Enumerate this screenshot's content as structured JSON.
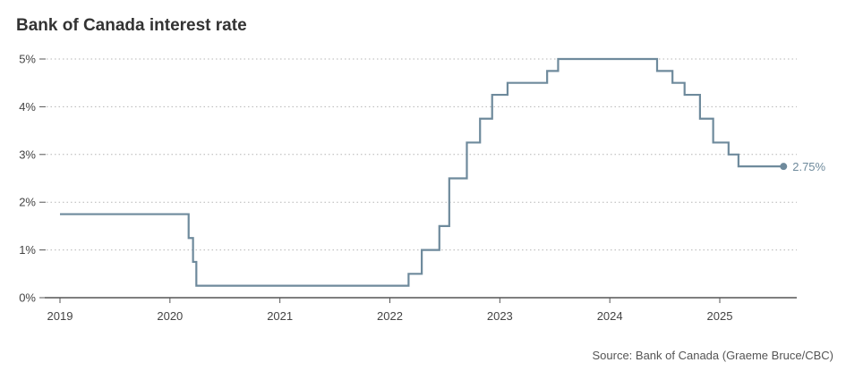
{
  "chart_data": {
    "type": "line",
    "title": "Bank of Canada interest rate",
    "xlabel": "",
    "ylabel": "",
    "x_ticks": [
      "2019",
      "2020",
      "2021",
      "2022",
      "2023",
      "2024",
      "2025"
    ],
    "y_ticks": [
      "0%",
      "1%",
      "2%",
      "3%",
      "4%",
      "5%"
    ],
    "xlim": [
      2019,
      2025.67
    ],
    "ylim": [
      0,
      5
    ],
    "grid": "horizontal-dotted",
    "step": "after",
    "series": [
      {
        "color": "#6e8a9c",
        "points": [
          {
            "x": 2019.0,
            "y": 1.75
          },
          {
            "x": 2020.17,
            "y": 1.25
          },
          {
            "x": 2020.21,
            "y": 0.75
          },
          {
            "x": 2020.24,
            "y": 0.25
          },
          {
            "x": 2022.17,
            "y": 0.5
          },
          {
            "x": 2022.29,
            "y": 1.0
          },
          {
            "x": 2022.45,
            "y": 1.5
          },
          {
            "x": 2022.54,
            "y": 2.5
          },
          {
            "x": 2022.7,
            "y": 3.25
          },
          {
            "x": 2022.82,
            "y": 3.75
          },
          {
            "x": 2022.93,
            "y": 4.25
          },
          {
            "x": 2023.07,
            "y": 4.5
          },
          {
            "x": 2023.43,
            "y": 4.75
          },
          {
            "x": 2023.53,
            "y": 5.0
          },
          {
            "x": 2024.43,
            "y": 4.75
          },
          {
            "x": 2024.57,
            "y": 4.5
          },
          {
            "x": 2024.68,
            "y": 4.25
          },
          {
            "x": 2024.82,
            "y": 3.75
          },
          {
            "x": 2024.94,
            "y": 3.25
          },
          {
            "x": 2025.08,
            "y": 3.0
          },
          {
            "x": 2025.17,
            "y": 2.75
          },
          {
            "x": 2025.58,
            "y": 2.75
          }
        ]
      }
    ],
    "end_label": "2.75%"
  },
  "source": "Source: Bank of Canada (Graeme Bruce/CBC)"
}
